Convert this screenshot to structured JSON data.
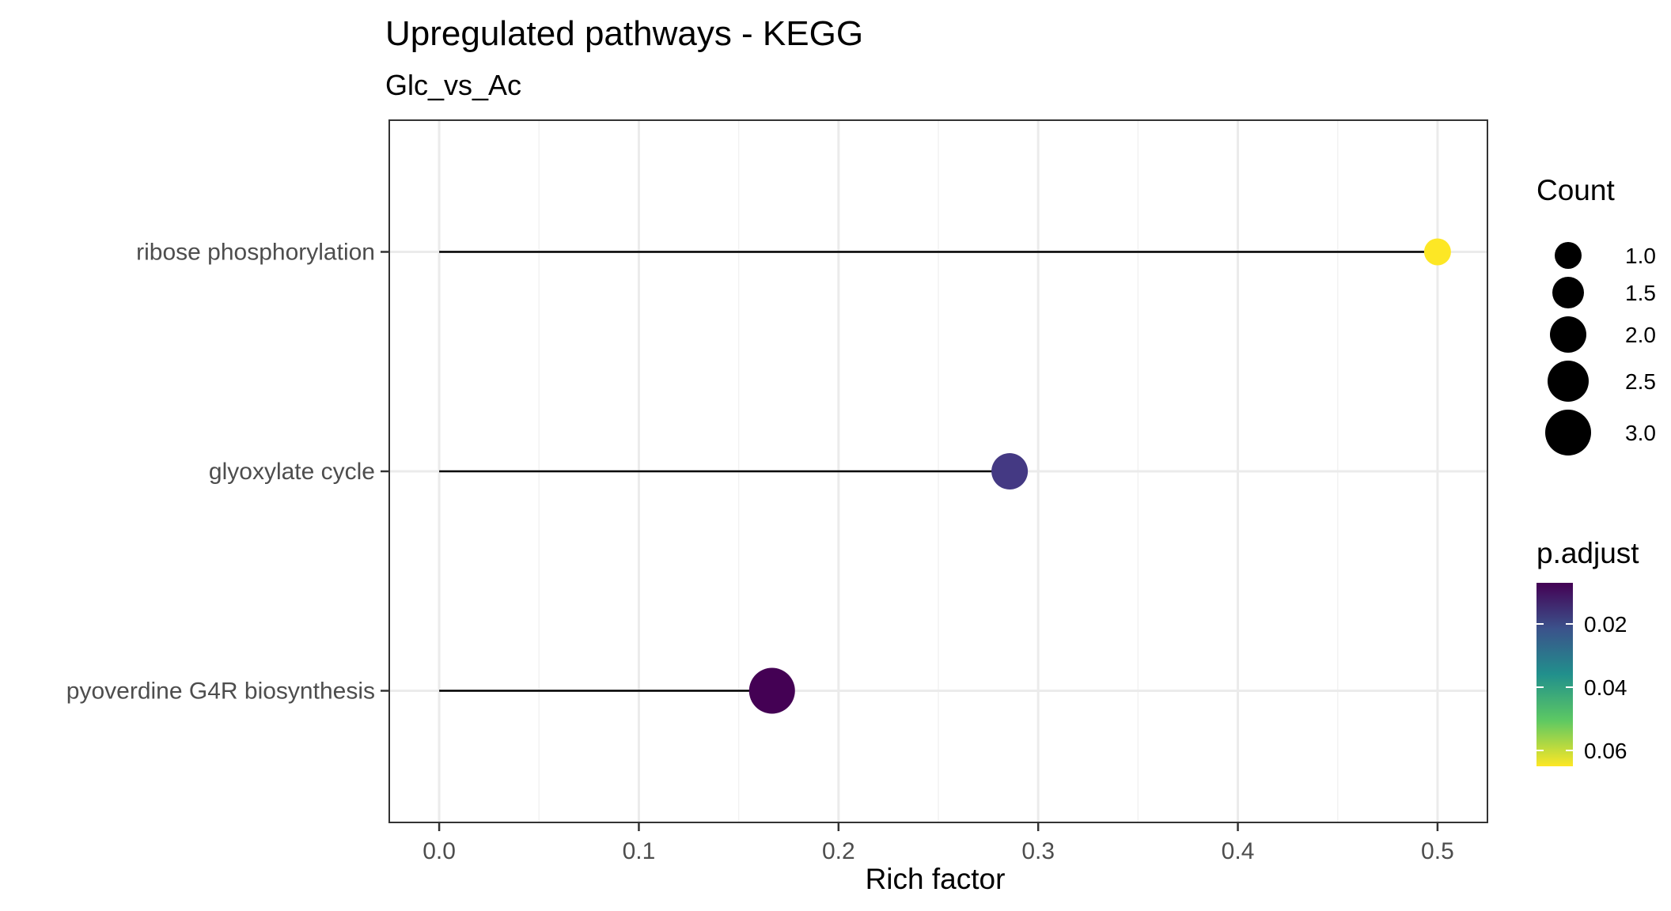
{
  "chart_data": {
    "type": "lollipop",
    "title": "Upregulated pathways - KEGG",
    "subtitle": "Glc_vs_Ac",
    "xlabel": "Rich factor",
    "ylabel": "",
    "xlim": [
      -0.025,
      0.525
    ],
    "x_ticks": [
      0.0,
      0.1,
      0.2,
      0.3,
      0.4,
      0.5
    ],
    "x_tick_labels": [
      "0.0",
      "0.1",
      "0.2",
      "0.3",
      "0.4",
      "0.5"
    ],
    "grid": true,
    "categories": [
      "ribose phosphorylation",
      "glyoxylate cycle",
      "pyoverdine G4R biosynthesis"
    ],
    "points": [
      {
        "category": "ribose phosphorylation",
        "rich_factor": 0.5,
        "count": 1,
        "p_adjust": 0.065,
        "color": "#fde725"
      },
      {
        "category": "glyoxylate cycle",
        "rich_factor": 0.2857,
        "count": 2,
        "p_adjust": 0.0125,
        "color": "#443983"
      },
      {
        "category": "pyoverdine G4R biosynthesis",
        "rich_factor": 0.1667,
        "count": 3,
        "p_adjust": 0.007,
        "color": "#440154"
      }
    ],
    "legend_size": {
      "title": "Count",
      "labels": [
        "1.0",
        "1.5",
        "2.0",
        "2.5",
        "3.0"
      ],
      "values": [
        1.0,
        1.5,
        2.0,
        2.5,
        3.0
      ]
    },
    "legend_color": {
      "title": "p.adjust",
      "labels": [
        "0.02",
        "0.04",
        "0.06"
      ],
      "values": [
        0.02,
        0.04,
        0.06
      ],
      "range": [
        0.007,
        0.065
      ],
      "colors": [
        "#440154",
        "#3b528b",
        "#21908c",
        "#5dc863",
        "#fde725"
      ]
    },
    "legend_placement": "right"
  }
}
